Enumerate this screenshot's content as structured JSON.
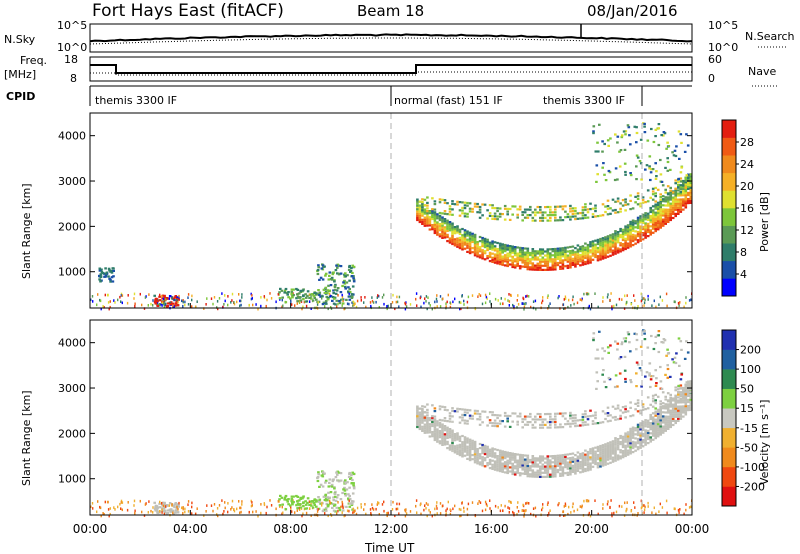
{
  "header": {
    "station": "Fort Hays East (fitACF)",
    "beam": "Beam 18",
    "date": "08/Jan/2016"
  },
  "nsky_panel": {
    "left_label": "N.Sky",
    "right_label": "N.Search",
    "yticks_left": [
      "10^5",
      "10^0"
    ],
    "yticks_right": [
      "10^5",
      "10^0"
    ]
  },
  "freq_panel": {
    "left_label_1": "Freq.",
    "left_label_2": "[MHz]",
    "right_label": "Nave",
    "yticks_left": [
      "18",
      "8"
    ],
    "yticks_right": [
      "60",
      "0"
    ]
  },
  "cpid": {
    "label": "CPID",
    "segments": [
      {
        "name": "themis 3300 IF",
        "start_ut": 0.0,
        "end_ut": 12.0
      },
      {
        "name": "normal (fast) 151 IF",
        "start_ut": 12.0,
        "end_ut": 22.0
      },
      {
        "name": "themis 3300 IF",
        "start_ut": 22.0,
        "end_ut": 24.0
      }
    ]
  },
  "power_panel": {
    "ylabel": "Slant Range [km]",
    "yticks": [
      "1000",
      "2000",
      "3000",
      "4000"
    ],
    "colorbar_label": "Power [dB]",
    "colorbar_ticks": [
      "4",
      "8",
      "12",
      "16",
      "20",
      "24",
      "28"
    ]
  },
  "velocity_panel": {
    "ylabel": "Slant Range [km]",
    "yticks": [
      "1000",
      "2000",
      "3000",
      "4000"
    ],
    "colorbar_label": "Velocity [m s⁻¹]",
    "colorbar_ticks": [
      "200",
      "100",
      "50",
      "15",
      "-15",
      "-50",
      "-100",
      "-200"
    ]
  },
  "xaxis": {
    "label": "Time UT",
    "ticks": [
      "00:00",
      "04:00",
      "08:00",
      "12:00",
      "16:00",
      "20:00",
      "00:00"
    ]
  },
  "colors": {
    "power_scale": [
      "#0000ff",
      "#1a4fa8",
      "#2f7d6a",
      "#5a9a55",
      "#7dc63a",
      "#dfe030",
      "#f5b026",
      "#f08a1c",
      "#f05a14",
      "#e31e10"
    ],
    "velocity_scale": [
      "#2030b0",
      "#2060a0",
      "#2e8a50",
      "#7dd040",
      "#c8c8c0",
      "#f0b030",
      "#f08a1c",
      "#f04810",
      "#e01010"
    ],
    "ground_scatter": "#c0c0b8",
    "dashed_line": "#b0b0b0"
  },
  "chart_data": [
    {
      "type": "heatmap",
      "name": "power",
      "x_range_ut": [
        0,
        24
      ],
      "y_range_km": [
        200,
        4500
      ],
      "features": [
        {
          "feature": "main_band",
          "ut_range": [
            13.0,
            24.0
          ],
          "center_km_at_start": 2300,
          "center_km_min": 1200,
          "min_at_ut": 18.0,
          "center_km_at_end": 2800,
          "power_db": 30
        },
        {
          "feature": "upper_arc",
          "ut_range": [
            13.0,
            24.0
          ],
          "center_km_at_start": 2500,
          "center_km_min": 2250,
          "min_at_ut": 18.0,
          "center_km_at_end": 3000,
          "power_db": 10
        },
        {
          "feature": "morning_patch",
          "ut_range": [
            2.5,
            3.5
          ],
          "range_km": [
            250,
            500
          ],
          "power_db": 28
        },
        {
          "feature": "afternoon_patch",
          "ut_range": [
            9.0,
            10.5
          ],
          "range_km": [
            300,
            1200
          ],
          "power_db": 8
        }
      ]
    },
    {
      "type": "heatmap",
      "name": "velocity",
      "x_range_ut": [
        0,
        24
      ],
      "y_range_km": [
        200,
        4500
      ],
      "features": [
        {
          "feature": "ground_scatter_band",
          "ut_range": [
            13.0,
            24.0
          ],
          "velocity_ms": 0
        },
        {
          "feature": "near_range_scatter",
          "ut_range": [
            0,
            24.0
          ],
          "range_km": [
            200,
            400
          ],
          "velocity_ms": -50
        }
      ]
    }
  ]
}
